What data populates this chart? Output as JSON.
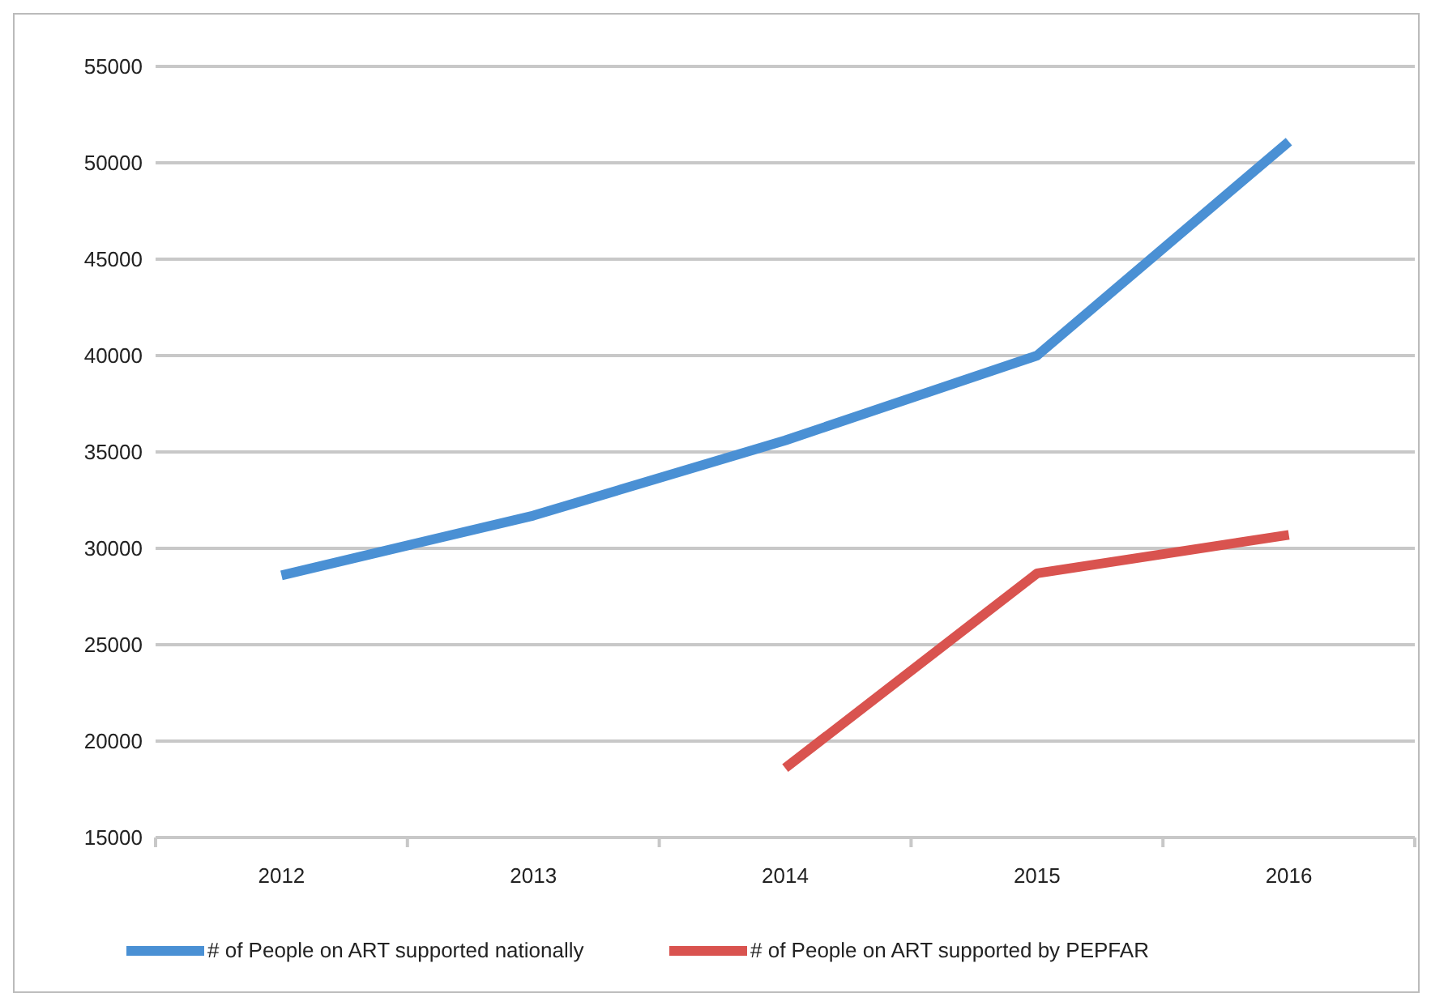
{
  "chart_data": {
    "type": "line",
    "categories": [
      "2012",
      "2013",
      "2014",
      "2015",
      "2016"
    ],
    "series": [
      {
        "name": "# of People on ART supported nationally",
        "color": "#4a90d4",
        "values": [
          28600,
          31700,
          35600,
          40000,
          51100
        ]
      },
      {
        "name": "# of People on ART supported by PEPFAR",
        "color": "#d9534f",
        "values": [
          null,
          null,
          18600,
          28700,
          30700
        ]
      }
    ],
    "ylim": [
      15000,
      55000
    ],
    "yticks": [
      15000,
      20000,
      25000,
      30000,
      35000,
      40000,
      45000,
      50000,
      55000
    ],
    "grid": "y",
    "legend": "bottom",
    "marker": "none",
    "line_style": "solid"
  }
}
